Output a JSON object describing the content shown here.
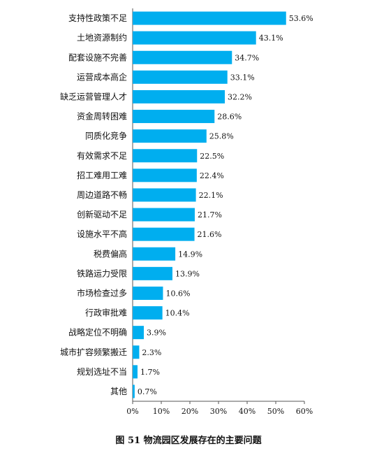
{
  "chart_data": {
    "type": "bar",
    "orientation": "horizontal",
    "title": "图 51  物流园区发展存在的主要问题",
    "categories": [
      "支持性政策不足",
      "土地资源制约",
      "配套设施不完善",
      "运营成本高企",
      "缺乏运营管理人才",
      "资金周转困难",
      "同质化竞争",
      "有效需求不足",
      "招工难用工难",
      "周边道路不畅",
      "创新驱动不足",
      "设施水平不高",
      "税费偏高",
      "铁路运力受限",
      "市场检查过多",
      "行政审批难",
      "战略定位不明确",
      "城市扩容频繁搬迁",
      "规划选址不当",
      "其他"
    ],
    "values": [
      53.6,
      43.1,
      34.7,
      33.1,
      32.2,
      28.6,
      25.8,
      22.5,
      22.4,
      22.1,
      21.7,
      21.6,
      14.9,
      13.9,
      10.6,
      10.4,
      3.9,
      2.3,
      1.7,
      0.7
    ],
    "value_labels": [
      "53.6%",
      "43.1%",
      "34.7%",
      "33.1%",
      "32.2%",
      "28.6%",
      "25.8%",
      "22.5%",
      "22.4%",
      "22.1%",
      "21.7%",
      "21.6%",
      "14.9%",
      "13.9%",
      "10.6%",
      "10.4%",
      "3.9%",
      "2.3%",
      "1.7%",
      "0.7%"
    ],
    "xlim": [
      0,
      60
    ],
    "xticks": [
      0,
      10,
      20,
      30,
      40,
      50,
      60
    ],
    "xtick_labels": [
      "0%",
      "10%",
      "20%",
      "30%",
      "40%",
      "50%",
      "60%"
    ],
    "bar_color": "#00AEEF",
    "grid": false,
    "legend": "none"
  }
}
